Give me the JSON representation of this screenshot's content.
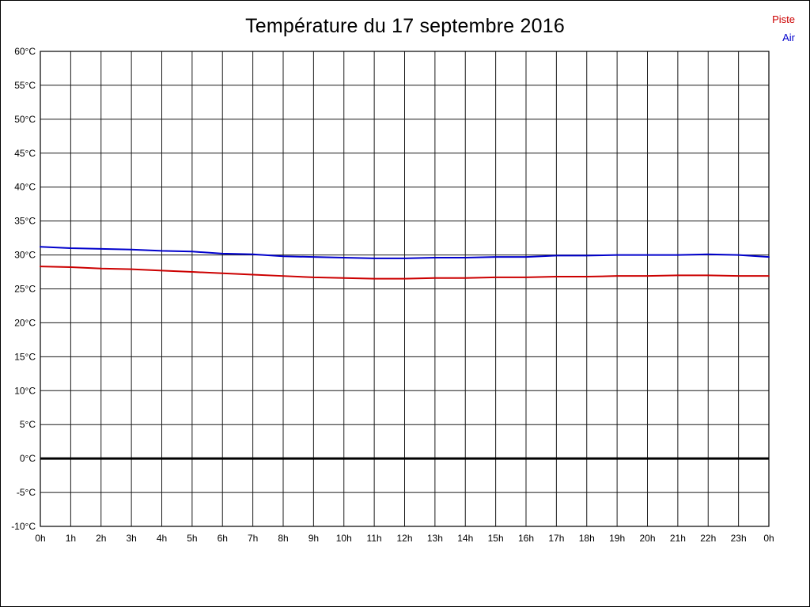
{
  "page": {
    "title": "Température du 17 septembre 2016"
  },
  "legend": {
    "items": [
      {
        "label": "Piste",
        "color": "#cc0000"
      },
      {
        "label": "Air",
        "color": "#0000cc"
      }
    ]
  },
  "chart_data": {
    "type": "line",
    "title": "Température du 17 septembre 2016",
    "xlabel": "",
    "ylabel": "",
    "ylim": [
      -10,
      60
    ],
    "ytick_step": 5,
    "ytick_suffix": "°C",
    "grid": true,
    "zero_line": true,
    "legend_position": "top-right",
    "x_tick_labels": [
      "0h",
      "1h",
      "2h",
      "3h",
      "4h",
      "5h",
      "6h",
      "7h",
      "8h",
      "9h",
      "10h",
      "11h",
      "12h",
      "13h",
      "14h",
      "15h",
      "16h",
      "17h",
      "18h",
      "19h",
      "20h",
      "21h",
      "22h",
      "23h",
      "0h"
    ],
    "x": [
      0,
      1,
      2,
      3,
      4,
      5,
      6,
      7,
      8,
      9,
      10,
      11,
      12,
      13,
      14,
      15,
      16,
      17,
      18,
      19,
      20,
      21,
      22,
      23,
      24
    ],
    "series": [
      {
        "name": "Piste",
        "color": "#cc0000",
        "values": [
          28.3,
          28.2,
          28.0,
          27.9,
          27.7,
          27.5,
          27.3,
          27.1,
          26.9,
          26.7,
          26.6,
          26.5,
          26.5,
          26.6,
          26.6,
          26.7,
          26.7,
          26.8,
          26.8,
          26.9,
          26.9,
          27.0,
          27.0,
          26.9,
          26.9
        ]
      },
      {
        "name": "Air",
        "color": "#0000cc",
        "values": [
          31.2,
          31.0,
          30.9,
          30.8,
          30.6,
          30.5,
          30.2,
          30.1,
          29.8,
          29.7,
          29.6,
          29.5,
          29.5,
          29.6,
          29.6,
          29.7,
          29.7,
          29.9,
          29.9,
          30.0,
          30.0,
          30.0,
          30.1,
          30.0,
          29.7
        ]
      }
    ]
  }
}
